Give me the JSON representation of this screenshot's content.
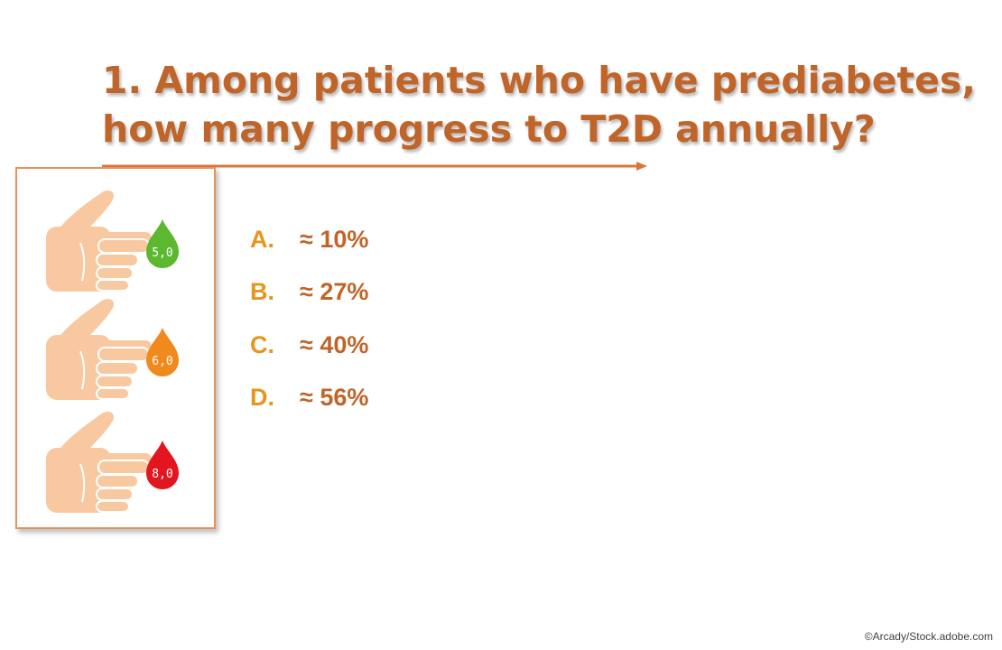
{
  "question": {
    "line1": "1. Among patients who have prediabetes,",
    "line2": "how many progress to T2D annually?"
  },
  "options": [
    {
      "letter": "A.",
      "text": "≈ 10%"
    },
    {
      "letter": "B.",
      "text": "≈ 27%"
    },
    {
      "letter": "C.",
      "text": "≈ 40%"
    },
    {
      "letter": "D.",
      "text": "≈ 56%"
    }
  ],
  "illustration": {
    "readings": [
      {
        "value": "5,0",
        "color": "#5cb82e"
      },
      {
        "value": "6,0",
        "color": "#f08a1c"
      },
      {
        "value": "8,0",
        "color": "#e3161f"
      }
    ],
    "skin_color": "#f8c9a0",
    "frame_color": "#e8925a"
  },
  "colors": {
    "title": "#c0652a",
    "letter": "#e8951e",
    "answer": "#c0652a"
  },
  "credit": "©Arcady/Stock.adobe.com"
}
